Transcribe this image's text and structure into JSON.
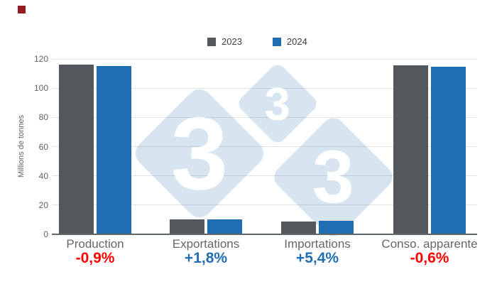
{
  "brand": {
    "corner_square_color": "#971c1f"
  },
  "legend": [
    {
      "label": "2023",
      "color": "#54575c"
    },
    {
      "label": "2024",
      "color": "#1f6db3"
    }
  ],
  "y_axis": {
    "title": "Millions de tonnes",
    "ticks": [
      0,
      20,
      40,
      60,
      80,
      100,
      120
    ]
  },
  "watermark": {
    "digit": "3"
  },
  "colors": {
    "bar_2023": "#54575c",
    "bar_2024": "#1f6db3",
    "negative_pct": "#fe0000",
    "positive_pct": "#1f6db3",
    "gridline": "#e2e2e2",
    "axis_line": "#61666b",
    "category_label": "#63676c",
    "watermark_blue": "rgba(31,109,179,0.18)"
  },
  "chart_data": {
    "type": "bar",
    "title": "",
    "categories": [
      "Production",
      "Exportations",
      "Importations",
      "Conso. apparente"
    ],
    "series": [
      {
        "name": "2023",
        "color": "#54575c",
        "values": [
          116.0,
          10.0,
          8.9,
          115.4
        ]
      },
      {
        "name": "2024",
        "color": "#1f6db3",
        "values": [
          115.0,
          10.2,
          9.4,
          114.7
        ]
      }
    ],
    "annotations": [
      {
        "category": "Production",
        "label": "-0,9%",
        "color": "#fe0000"
      },
      {
        "category": "Exportations",
        "label": "+1,8%",
        "color": "#1f6db3"
      },
      {
        "category": "Importations",
        "label": "+5,4%",
        "color": "#1f6db3"
      },
      {
        "category": "Conso. apparente",
        "label": "-0,6%",
        "color": "#fe0000"
      }
    ],
    "xlabel": "",
    "ylabel": "Millions de tonnes",
    "ylim": [
      0,
      120
    ],
    "grid": true,
    "legend_position": "top"
  }
}
